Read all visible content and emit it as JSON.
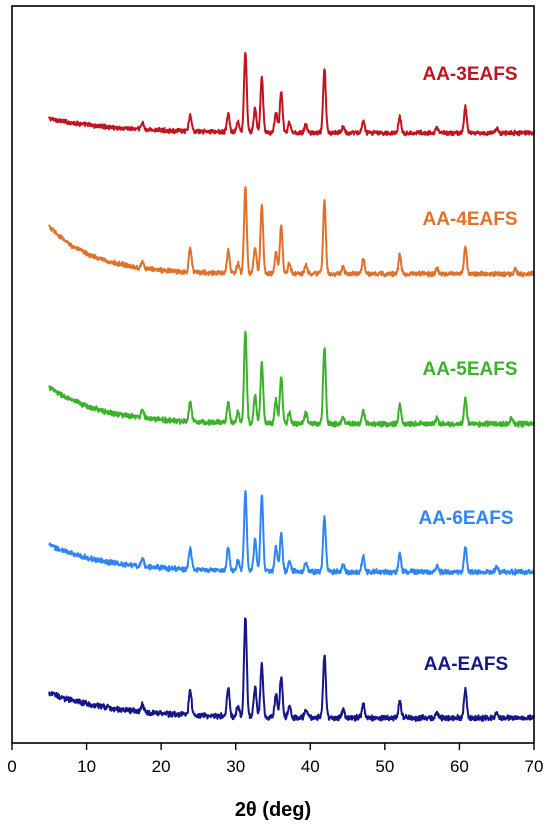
{
  "chart_data": {
    "type": "line",
    "title": "",
    "xlabel": "2θ (deg)",
    "ylabel": "",
    "xlim": [
      0,
      70
    ],
    "x_ticks": [
      0,
      10,
      20,
      30,
      40,
      50,
      60,
      70
    ],
    "x_tick_labels": [
      "0",
      "10",
      "20",
      "30",
      "40",
      "50",
      "60",
      "70"
    ],
    "y_ticks_shown": false,
    "grid": false,
    "legend": "labels above each trace",
    "vertical_offset_stack": true,
    "series": [
      {
        "name": "AA-3EAFS",
        "color": "#C0141E",
        "x_start": 5,
        "x_end": 70,
        "background": {
          "start": 0.18,
          "end": 0.0,
          "decay": 9
        },
        "peaks": [
          {
            "x": 17.5,
            "h": 0.08
          },
          {
            "x": 23.9,
            "h": 0.2
          },
          {
            "x": 29.0,
            "h": 0.22
          },
          {
            "x": 30.3,
            "h": 0.12
          },
          {
            "x": 31.3,
            "h": 1.0
          },
          {
            "x": 32.6,
            "h": 0.3
          },
          {
            "x": 33.5,
            "h": 0.68
          },
          {
            "x": 35.4,
            "h": 0.25
          },
          {
            "x": 36.1,
            "h": 0.5
          },
          {
            "x": 37.2,
            "h": 0.12
          },
          {
            "x": 39.4,
            "h": 0.1
          },
          {
            "x": 41.9,
            "h": 0.8
          },
          {
            "x": 44.4,
            "h": 0.08
          },
          {
            "x": 47.1,
            "h": 0.15
          },
          {
            "x": 52.0,
            "h": 0.2
          },
          {
            "x": 57.0,
            "h": 0.06
          },
          {
            "x": 60.8,
            "h": 0.33
          },
          {
            "x": 65.0,
            "h": 0.06
          }
        ]
      },
      {
        "name": "AA-4EAFS",
        "color": "#E0712B",
        "x_start": 5,
        "x_end": 70,
        "background": {
          "start": 0.55,
          "end": 0.0,
          "decay": 6
        },
        "peaks": [
          {
            "x": 17.5,
            "h": 0.08
          },
          {
            "x": 23.9,
            "h": 0.28
          },
          {
            "x": 29.0,
            "h": 0.26
          },
          {
            "x": 30.3,
            "h": 0.12
          },
          {
            "x": 31.3,
            "h": 1.0
          },
          {
            "x": 32.6,
            "h": 0.32
          },
          {
            "x": 33.5,
            "h": 0.8
          },
          {
            "x": 35.4,
            "h": 0.25
          },
          {
            "x": 36.1,
            "h": 0.55
          },
          {
            "x": 37.2,
            "h": 0.12
          },
          {
            "x": 39.4,
            "h": 0.1
          },
          {
            "x": 41.9,
            "h": 0.85
          },
          {
            "x": 44.4,
            "h": 0.08
          },
          {
            "x": 47.1,
            "h": 0.17
          },
          {
            "x": 52.0,
            "h": 0.22
          },
          {
            "x": 57.0,
            "h": 0.06
          },
          {
            "x": 60.8,
            "h": 0.32
          },
          {
            "x": 67.5,
            "h": 0.06
          }
        ]
      },
      {
        "name": "AA-5EAFS",
        "color": "#3CB22A",
        "x_start": 5,
        "x_end": 70,
        "background": {
          "start": 0.4,
          "end": 0.0,
          "decay": 7
        },
        "peaks": [
          {
            "x": 17.5,
            "h": 0.09
          },
          {
            "x": 23.9,
            "h": 0.22
          },
          {
            "x": 29.0,
            "h": 0.22
          },
          {
            "x": 30.3,
            "h": 0.12
          },
          {
            "x": 31.3,
            "h": 1.0
          },
          {
            "x": 32.6,
            "h": 0.3
          },
          {
            "x": 33.5,
            "h": 0.66
          },
          {
            "x": 35.4,
            "h": 0.25
          },
          {
            "x": 36.1,
            "h": 0.5
          },
          {
            "x": 37.2,
            "h": 0.12
          },
          {
            "x": 39.4,
            "h": 0.12
          },
          {
            "x": 41.9,
            "h": 0.83
          },
          {
            "x": 44.4,
            "h": 0.08
          },
          {
            "x": 47.1,
            "h": 0.15
          },
          {
            "x": 52.0,
            "h": 0.2
          },
          {
            "x": 57.0,
            "h": 0.06
          },
          {
            "x": 60.8,
            "h": 0.28
          },
          {
            "x": 67.0,
            "h": 0.07
          }
        ]
      },
      {
        "name": "AA-6EAFS",
        "color": "#2F86F2",
        "x_start": 5,
        "x_end": 70,
        "background": {
          "start": 0.3,
          "end": 0.0,
          "decay": 8
        },
        "peaks": [
          {
            "x": 17.5,
            "h": 0.08
          },
          {
            "x": 23.9,
            "h": 0.24
          },
          {
            "x": 29.0,
            "h": 0.26
          },
          {
            "x": 30.3,
            "h": 0.12
          },
          {
            "x": 31.3,
            "h": 0.88
          },
          {
            "x": 32.6,
            "h": 0.35
          },
          {
            "x": 33.5,
            "h": 0.85
          },
          {
            "x": 35.4,
            "h": 0.28
          },
          {
            "x": 36.1,
            "h": 0.42
          },
          {
            "x": 37.2,
            "h": 0.12
          },
          {
            "x": 39.4,
            "h": 0.1
          },
          {
            "x": 41.9,
            "h": 0.62
          },
          {
            "x": 44.4,
            "h": 0.08
          },
          {
            "x": 47.1,
            "h": 0.17
          },
          {
            "x": 52.0,
            "h": 0.2
          },
          {
            "x": 57.0,
            "h": 0.06
          },
          {
            "x": 60.8,
            "h": 0.28
          },
          {
            "x": 65.0,
            "h": 0.06
          }
        ]
      },
      {
        "name": "AA-EAFS",
        "color": "#16168A",
        "x_start": 5,
        "x_end": 70,
        "background": {
          "start": 0.25,
          "end": 0.0,
          "decay": 9
        },
        "peaks": [
          {
            "x": 17.5,
            "h": 0.07
          },
          {
            "x": 23.9,
            "h": 0.25
          },
          {
            "x": 29.0,
            "h": 0.28
          },
          {
            "x": 30.3,
            "h": 0.12
          },
          {
            "x": 31.3,
            "h": 1.0
          },
          {
            "x": 32.6,
            "h": 0.3
          },
          {
            "x": 33.5,
            "h": 0.52
          },
          {
            "x": 35.4,
            "h": 0.22
          },
          {
            "x": 36.1,
            "h": 0.4
          },
          {
            "x": 37.2,
            "h": 0.12
          },
          {
            "x": 39.4,
            "h": 0.09
          },
          {
            "x": 41.9,
            "h": 0.63
          },
          {
            "x": 44.4,
            "h": 0.08
          },
          {
            "x": 47.1,
            "h": 0.15
          },
          {
            "x": 52.0,
            "h": 0.17
          },
          {
            "x": 57.0,
            "h": 0.06
          },
          {
            "x": 60.8,
            "h": 0.28
          },
          {
            "x": 65.0,
            "h": 0.06
          }
        ]
      }
    ]
  }
}
